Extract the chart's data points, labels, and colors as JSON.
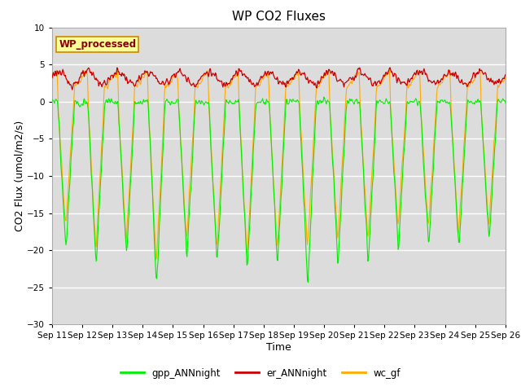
{
  "title": "WP CO2 Fluxes",
  "xlabel": "Time",
  "ylabel": "CO2 Flux (umol/m2/s)",
  "ylim": [
    -30,
    10
  ],
  "yticks": [
    -30,
    -25,
    -20,
    -15,
    -10,
    -5,
    0,
    5,
    10
  ],
  "n_days": 15,
  "points_per_day": 48,
  "start_day": 11,
  "colors": {
    "gpp": "#00ee00",
    "er": "#cc0000",
    "wc": "#ffaa00"
  },
  "legend_labels": [
    "gpp_ANNnight",
    "er_ANNnight",
    "wc_gf"
  ],
  "watermark_text": "WP_processed",
  "watermark_facecolor": "#ffff99",
  "watermark_edgecolor": "#cc8800",
  "watermark_textcolor": "#880000",
  "bg_color": "#dcdcdc",
  "grid_color": "white",
  "title_fontsize": 11,
  "axis_fontsize": 9,
  "tick_fontsize": 7.5
}
